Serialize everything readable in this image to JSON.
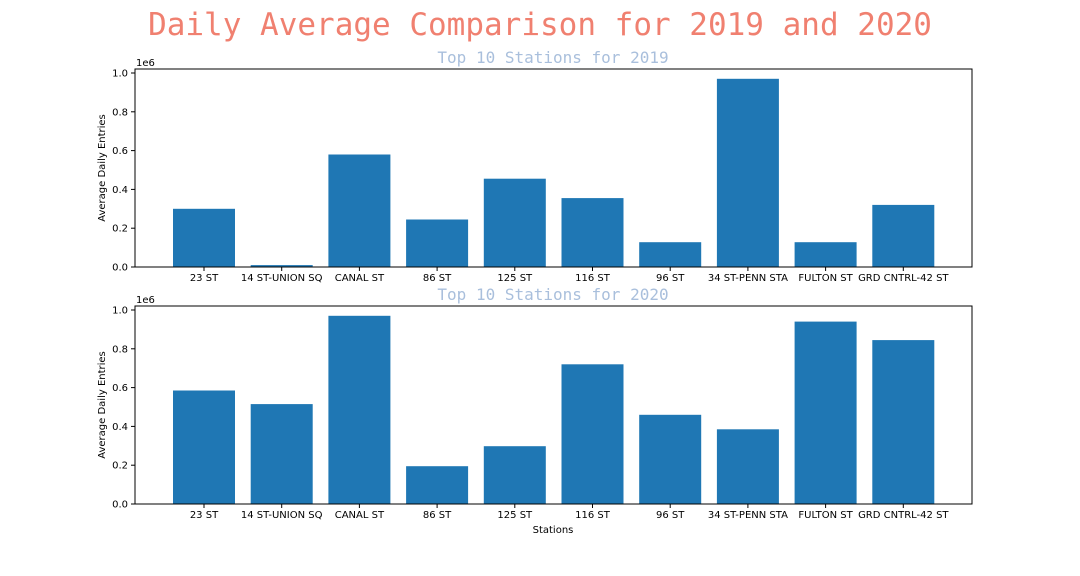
{
  "figure": {
    "title": "Daily Average Comparison for 2019 and 2020",
    "bar_color": "#1f77b4",
    "title_color": "#f08070",
    "subtitle_color": "#a9bfdc"
  },
  "chart_data": [
    {
      "type": "bar",
      "title": "Top 10 Stations for 2019",
      "xlabel": "",
      "ylabel": "Average Daily Entries",
      "offset_label": "1e6",
      "ylim": [
        0,
        1.0
      ],
      "yticks": [
        "0.0",
        "0.2",
        "0.4",
        "0.6",
        "0.8",
        "1.0"
      ],
      "categories": [
        "23 ST",
        "14 ST-UNION SQ",
        "CANAL ST",
        "86 ST",
        "125 ST",
        "116 ST",
        "96 ST",
        "34 ST-PENN STA",
        "FULTON ST",
        "GRD CNTRL-42 ST"
      ],
      "values": [
        0.3,
        0.01,
        0.58,
        0.245,
        0.455,
        0.355,
        0.128,
        0.97,
        0.128,
        0.32
      ]
    },
    {
      "type": "bar",
      "title": "Top 10 Stations for 2020",
      "xlabel": "Stations",
      "ylabel": "Average Daily Entries",
      "offset_label": "1e6",
      "ylim": [
        0,
        1.0
      ],
      "yticks": [
        "0.0",
        "0.2",
        "0.4",
        "0.6",
        "0.8",
        "1.0"
      ],
      "categories": [
        "23 ST",
        "14 ST-UNION SQ",
        "CANAL ST",
        "86 ST",
        "125 ST",
        "116 ST",
        "96 ST",
        "34 ST-PENN STA",
        "FULTON ST",
        "GRD CNTRL-42 ST"
      ],
      "values": [
        0.585,
        0.515,
        0.97,
        0.195,
        0.298,
        0.72,
        0.46,
        0.385,
        0.94,
        0.845
      ]
    }
  ]
}
